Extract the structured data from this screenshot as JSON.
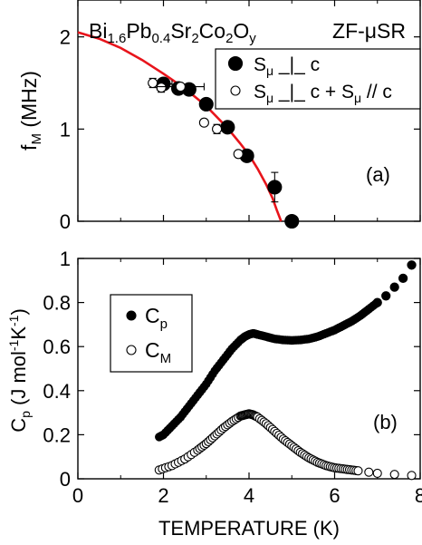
{
  "chart_data": [
    {
      "type": "scatter",
      "panel_label": "(a)",
      "title": "",
      "compound": {
        "parts": [
          {
            "t": "Bi",
            "sub": false
          },
          {
            "t": "1.6",
            "sub": true
          },
          {
            "t": "Pb",
            "sub": false
          },
          {
            "t": "0.4",
            "sub": true
          },
          {
            "t": "Sr",
            "sub": false
          },
          {
            "t": "2",
            "sub": true
          },
          {
            "t": "Co",
            "sub": false
          },
          {
            "t": "2",
            "sub": true
          },
          {
            "t": "O",
            "sub": false
          },
          {
            "t": "y",
            "sub": true
          }
        ]
      },
      "technique": "ZF-μSR",
      "ylabel": "f",
      "ylabel_sub": "M",
      "ylabel_unit": " (MHz)",
      "xlim": [
        0,
        8
      ],
      "ylim": [
        0,
        2.4
      ],
      "yticks": [
        0,
        1,
        2
      ],
      "xticks": [
        0,
        2,
        4,
        6,
        8
      ],
      "grid": false,
      "legend_position": "top-right",
      "legend": [
        {
          "marker": "filled",
          "text": "S",
          "sub": "μ",
          "rest": " _|_ c"
        },
        {
          "marker": "open",
          "text": "S",
          "sub": "μ",
          "rest": " _|_ c + S",
          "sub2": "μ",
          "rest2": " // c"
        }
      ],
      "series": [
        {
          "name": "S_μ _|_ c",
          "marker": "filled",
          "points": [
            {
              "x": 2.0,
              "y": 1.49,
              "xerr": 0.2,
              "yerr": 0.06
            },
            {
              "x": 2.35,
              "y": 1.44
            },
            {
              "x": 2.6,
              "y": 1.43
            },
            {
              "x": 3.0,
              "y": 1.27
            },
            {
              "x": 3.5,
              "y": 1.02
            },
            {
              "x": 3.95,
              "y": 0.71
            },
            {
              "x": 4.6,
              "y": 0.37,
              "yerr": 0.16
            },
            {
              "x": 5.0,
              "y": 0.0
            }
          ]
        },
        {
          "name": "S_μ _|_ c + S_μ // c",
          "marker": "open",
          "points": [
            {
              "x": 1.75,
              "y": 1.5,
              "yerr": 0.05
            },
            {
              "x": 1.95,
              "y": 1.45,
              "yerr": 0.05
            },
            {
              "x": 2.4,
              "y": 1.46,
              "xerr": 0.55
            },
            {
              "x": 2.95,
              "y": 1.07
            },
            {
              "x": 3.25,
              "y": 1.0,
              "yerr": 0.05
            },
            {
              "x": 3.75,
              "y": 0.73
            }
          ]
        }
      ],
      "fit_curve": {
        "name": "fit",
        "color": "#e8141b",
        "x": [
          0,
          0.5,
          1.0,
          1.5,
          2.0,
          2.5,
          3.0,
          3.5,
          3.8,
          4.0,
          4.2,
          4.4,
          4.55,
          4.65,
          4.75
        ],
        "y": [
          2.05,
          1.98,
          1.88,
          1.75,
          1.6,
          1.44,
          1.25,
          1.01,
          0.84,
          0.72,
          0.57,
          0.4,
          0.25,
          0.12,
          0.0
        ]
      }
    },
    {
      "type": "scatter",
      "panel_label": "(b)",
      "title": "",
      "xlabel": "TEMPERATURE (K)",
      "ylabel": "C",
      "ylabel_sub": "p",
      "ylabel_unit_open": " (J mol",
      "ylabel_sup1": "-1",
      "ylabel_mid": "K",
      "ylabel_sup2": "-1",
      "ylabel_close": ")",
      "xlim": [
        0,
        8
      ],
      "ylim": [
        0,
        1.0
      ],
      "yticks": [
        0,
        0.2,
        0.4,
        0.6,
        0.8,
        1
      ],
      "xticks": [
        0,
        2,
        4,
        6,
        8
      ],
      "grid": false,
      "legend_position": "top-left",
      "legend": [
        {
          "marker": "filled",
          "text": "C",
          "sub": "p"
        },
        {
          "marker": "open",
          "text": "C",
          "sub": "M"
        }
      ],
      "series": [
        {
          "name": "C_p",
          "marker": "filled",
          "curve": {
            "x": [
              1.9,
              2.0,
              2.2,
              2.4,
              2.6,
              2.8,
              3.0,
              3.2,
              3.4,
              3.6,
              3.8,
              3.9,
              4.0,
              4.1,
              4.2,
              4.4,
              4.6,
              4.8,
              5.0,
              5.2,
              5.4,
              5.6,
              5.8,
              6.0,
              6.2,
              6.4,
              6.6,
              6.8,
              7.0
            ],
            "y": [
              0.19,
              0.2,
              0.24,
              0.28,
              0.33,
              0.38,
              0.43,
              0.49,
              0.54,
              0.59,
              0.63,
              0.645,
              0.655,
              0.66,
              0.655,
              0.645,
              0.635,
              0.63,
              0.628,
              0.63,
              0.635,
              0.645,
              0.66,
              0.675,
              0.695,
              0.715,
              0.74,
              0.77,
              0.8
            ]
          },
          "points": [
            {
              "x": 7.0,
              "y": 0.8
            },
            {
              "x": 7.2,
              "y": 0.83
            },
            {
              "x": 7.4,
              "y": 0.87
            },
            {
              "x": 7.6,
              "y": 0.91
            },
            {
              "x": 7.8,
              "y": 0.97
            }
          ]
        },
        {
          "name": "C_M",
          "marker": "open",
          "curve": {
            "x": [
              1.9,
              2.2,
              2.5,
              2.8,
              3.0,
              3.2,
              3.4,
              3.6,
              3.8,
              3.9,
              4.0,
              4.1,
              4.2,
              4.4,
              4.6,
              4.8,
              5.0,
              5.2,
              5.4,
              5.6,
              5.8,
              6.0,
              6.2,
              6.4,
              6.6
            ],
            "y": [
              0.04,
              0.06,
              0.09,
              0.13,
              0.16,
              0.195,
              0.23,
              0.26,
              0.285,
              0.29,
              0.295,
              0.29,
              0.28,
              0.25,
              0.215,
              0.18,
              0.15,
              0.12,
              0.095,
              0.075,
              0.06,
              0.05,
              0.045,
              0.04,
              0.035
            ]
          },
          "points": [
            {
              "x": 6.8,
              "y": 0.03
            },
            {
              "x": 7.0,
              "y": 0.025
            },
            {
              "x": 7.4,
              "y": 0.02
            },
            {
              "x": 7.8,
              "y": 0.015
            }
          ]
        }
      ]
    }
  ]
}
